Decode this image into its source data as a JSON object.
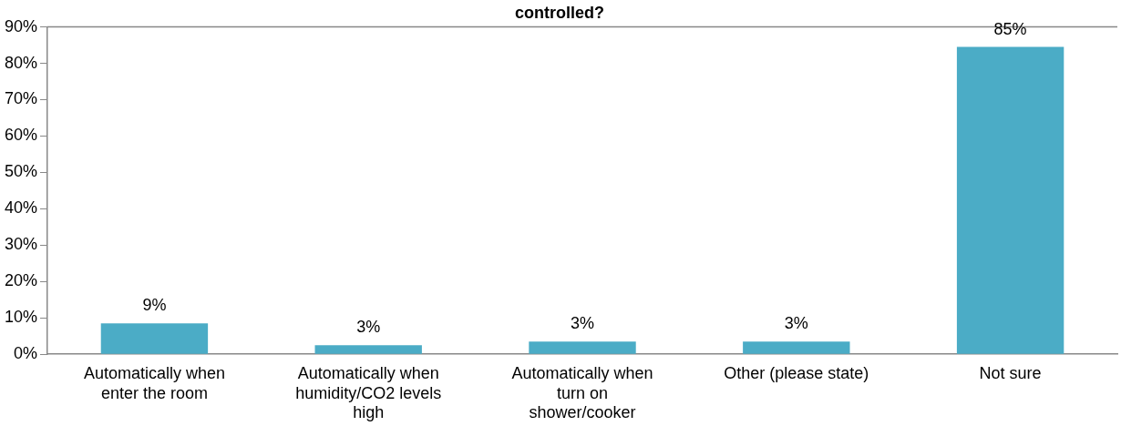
{
  "chart_data": {
    "type": "bar",
    "title": "controlled?",
    "categories": [
      "Automatically when enter the room",
      "Automatically when humidity/CO2 levels high",
      "Automatically when turn on shower/cooker",
      "Other (please state)",
      "Not sure"
    ],
    "values": [
      8.5,
      2.5,
      3.5,
      3.5,
      84.5
    ],
    "color": "#4bacc6",
    "value_labels": [
      "9%",
      "3%",
      "3%",
      "3%",
      "85%"
    ],
    "ylim": [
      0,
      90
    ],
    "yticks": [
      {
        "value": 0,
        "label": "0%"
      },
      {
        "value": 10,
        "label": "10%"
      },
      {
        "value": 20,
        "label": "20%"
      },
      {
        "value": 30,
        "label": "30%"
      },
      {
        "value": 40,
        "label": "40%"
      },
      {
        "value": 50,
        "label": "50%"
      },
      {
        "value": 60,
        "label": "60%"
      },
      {
        "value": 70,
        "label": "70%"
      },
      {
        "value": 80,
        "label": "80%"
      },
      {
        "value": 90,
        "label": "90%"
      }
    ],
    "grid": false,
    "legend": false
  }
}
